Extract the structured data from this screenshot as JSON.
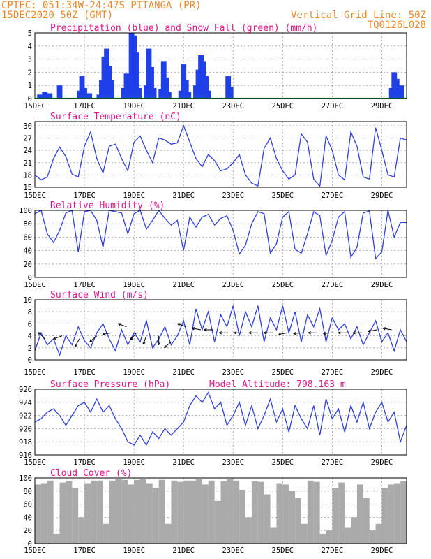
{
  "header": {
    "line1_left": "CPTEC:  051:34W-24:47S  PITANGA (PR)",
    "line2_left": "15DEC2020 50Z (GMT)",
    "line2_right": "Vertical Grid Line: 50Z",
    "line3_right": "TQ0126L028"
  },
  "colors": {
    "header": "#e8892b",
    "title": "#e0148c",
    "series": "#2d3fe0",
    "precip": "#1f3fe8",
    "snow": "#19a83a",
    "cloud": "#aaaaaa"
  },
  "x_ticks": [
    "15DEC",
    "17DEC",
    "19DEC",
    "21DEC",
    "23DEC",
    "25DEC",
    "27DEC",
    "29DEC"
  ],
  "x_tick_days": [
    0,
    2,
    4,
    6,
    8,
    10,
    12,
    14
  ],
  "x_range_days": [
    0,
    15
  ],
  "chart_data": [
    {
      "type": "bar",
      "title": "Precipitation (blue) and Snow Fall (green) (mm/h)",
      "ylim": [
        0,
        5
      ],
      "yticks": [
        0,
        1,
        2,
        3,
        4,
        5
      ],
      "series": [
        {
          "name": "Precipitation",
          "points": [
            [
              0.2,
              0.3
            ],
            [
              0.4,
              0.5
            ],
            [
              0.6,
              0.4
            ],
            [
              1.0,
              1.0
            ],
            [
              1.8,
              0.6
            ],
            [
              1.9,
              1.7
            ],
            [
              2.0,
              0.8
            ],
            [
              2.2,
              0.4
            ],
            [
              2.6,
              0.3
            ],
            [
              2.7,
              1.4
            ],
            [
              2.8,
              3.2
            ],
            [
              2.9,
              3.8
            ],
            [
              3.0,
              2.5
            ],
            [
              3.1,
              1.4
            ],
            [
              3.6,
              0.8
            ],
            [
              3.7,
              1.9
            ],
            [
              3.8,
              0.6
            ],
            [
              3.9,
              5.0
            ],
            [
              4.0,
              4.8
            ],
            [
              4.1,
              3.5
            ],
            [
              4.2,
              0.8
            ],
            [
              4.5,
              1.0
            ],
            [
              4.6,
              3.8
            ],
            [
              4.7,
              2.4
            ],
            [
              4.8,
              0.8
            ],
            [
              5.1,
              0.7
            ],
            [
              5.2,
              2.8
            ],
            [
              5.3,
              1.6
            ],
            [
              5.4,
              0.5
            ],
            [
              5.9,
              0.6
            ],
            [
              6.0,
              2.6
            ],
            [
              6.1,
              1.4
            ],
            [
              6.2,
              0.5
            ],
            [
              6.5,
              1.0
            ],
            [
              6.6,
              2.2
            ],
            [
              6.7,
              3.3
            ],
            [
              6.8,
              2.8
            ],
            [
              6.9,
              1.7
            ],
            [
              7.0,
              0.6
            ],
            [
              7.8,
              1.7
            ],
            [
              7.9,
              0.9
            ],
            [
              14.4,
              0.8
            ],
            [
              14.5,
              2.0
            ],
            [
              14.6,
              1.5
            ],
            [
              14.7,
              0.6
            ],
            [
              14.8,
              1.0
            ]
          ]
        },
        {
          "name": "Snow Fall",
          "points": []
        }
      ]
    },
    {
      "type": "line",
      "title": "Surface Temperature (nC)",
      "ylim": [
        15,
        31
      ],
      "yticks": [
        15,
        18,
        21,
        24,
        27,
        30
      ],
      "x": [
        0,
        0.25,
        0.5,
        0.75,
        1,
        1.25,
        1.5,
        1.75,
        2,
        2.25,
        2.5,
        2.75,
        3,
        3.25,
        3.5,
        3.75,
        4,
        4.25,
        4.5,
        4.75,
        5,
        5.25,
        5.5,
        5.75,
        6,
        6.25,
        6.5,
        6.75,
        7,
        7.25,
        7.5,
        7.75,
        8,
        8.25,
        8.5,
        8.75,
        9,
        9.25,
        9.5,
        9.75,
        10,
        10.25,
        10.5,
        10.75,
        11,
        11.25,
        11.5,
        11.75,
        12,
        12.25,
        12.5,
        12.75,
        13,
        13.25,
        13.5,
        13.75,
        14,
        14.25,
        14.5,
        14.75,
        15
      ],
      "y": [
        18,
        16.8,
        17.5,
        22,
        24.8,
        22.5,
        18.2,
        17.5,
        25,
        28.5,
        22,
        18.5,
        25,
        25.5,
        22,
        19,
        26,
        27.5,
        24,
        21,
        27,
        26.5,
        25.5,
        25.8,
        30,
        26,
        22,
        20,
        23,
        21.5,
        19,
        19.5,
        21,
        23,
        18,
        16,
        15.3,
        24.5,
        27,
        22,
        19,
        17,
        18,
        28,
        26,
        17,
        15.2,
        27.5,
        24,
        18,
        16.8,
        28.5,
        25,
        17.5,
        17,
        29.5,
        24,
        18,
        17.5,
        27,
        26.5
      ]
    },
    {
      "type": "line",
      "title": "Relative Humidity (%)",
      "ylim": [
        0,
        100
      ],
      "yticks": [
        0,
        20,
        40,
        60,
        80,
        100
      ],
      "x": [
        0,
        0.25,
        0.5,
        0.75,
        1,
        1.25,
        1.5,
        1.75,
        2,
        2.25,
        2.5,
        2.75,
        3,
        3.25,
        3.5,
        3.75,
        4,
        4.25,
        4.5,
        4.75,
        5,
        5.25,
        5.5,
        5.75,
        6,
        6.25,
        6.5,
        6.75,
        7,
        7.25,
        7.5,
        7.75,
        8,
        8.25,
        8.5,
        8.75,
        9,
        9.25,
        9.5,
        9.75,
        10,
        10.25,
        10.5,
        10.75,
        11,
        11.25,
        11.5,
        11.75,
        12,
        12.25,
        12.5,
        12.75,
        13,
        13.25,
        13.5,
        13.75,
        14,
        14.25,
        14.5,
        14.75,
        15
      ],
      "y": [
        95,
        100,
        65,
        52,
        70,
        96,
        100,
        38,
        98,
        100,
        85,
        45,
        100,
        98,
        96,
        65,
        95,
        100,
        72,
        85,
        100,
        88,
        78,
        85,
        40,
        90,
        75,
        90,
        94,
        78,
        88,
        92,
        70,
        35,
        48,
        80,
        98,
        95,
        36,
        50,
        90,
        98,
        42,
        36,
        65,
        98,
        92,
        33,
        55,
        90,
        98,
        30,
        45,
        96,
        99,
        28,
        38,
        100,
        60,
        82,
        82
      ]
    },
    {
      "type": "line",
      "title": "Surface Wind (m/s)",
      "ylim": [
        0,
        10
      ],
      "yticks": [
        0,
        2,
        4,
        6,
        8,
        10
      ],
      "x": [
        0,
        0.25,
        0.5,
        0.75,
        1,
        1.25,
        1.5,
        1.75,
        2,
        2.25,
        2.5,
        2.75,
        3,
        3.25,
        3.5,
        3.75,
        4,
        4.25,
        4.5,
        4.75,
        5,
        5.25,
        5.5,
        5.75,
        6,
        6.25,
        6.5,
        6.75,
        7,
        7.25,
        7.5,
        7.75,
        8,
        8.25,
        8.5,
        8.75,
        9,
        9.25,
        9.5,
        9.75,
        10,
        10.25,
        10.5,
        10.75,
        11,
        11.25,
        11.5,
        11.75,
        12,
        12.25,
        12.5,
        12.75,
        13,
        13.25,
        13.5,
        13.75,
        14,
        14.25,
        14.5,
        14.75,
        15
      ],
      "y": [
        1.5,
        4.5,
        2.5,
        3.5,
        0.8,
        4,
        2.5,
        5.5,
        3.2,
        2,
        4.5,
        6,
        3.5,
        1.5,
        5,
        2.5,
        4.5,
        3,
        6.5,
        2,
        3.5,
        5.5,
        2.5,
        4,
        6.5,
        2.5,
        8.5,
        5,
        8,
        3,
        7.5,
        5.5,
        9,
        4,
        8,
        5.5,
        9,
        3,
        7,
        5,
        9,
        4.5,
        8,
        3,
        7.5,
        5.5,
        8.5,
        3,
        7,
        5,
        6,
        3.5,
        5.5,
        2.5,
        4.5,
        6.5,
        3,
        4.5,
        1.5,
        5,
        3
      ],
      "arrows_days": [
        0.4,
        1.1,
        1.8,
        2.5,
        3.1,
        3.7,
        4.1,
        4.5,
        5.0,
        5.5,
        6.1,
        6.7,
        7.2,
        7.8,
        8.4,
        9.0,
        9.6,
        10.2,
        10.8,
        11.4,
        12.0,
        12.6,
        13.2,
        13.8,
        14.4
      ],
      "arrow_level": [
        3.5,
        4.0,
        3.5,
        4.0,
        4.5,
        5.5,
        4.5,
        4.0,
        4.0,
        3.0,
        5.5,
        5.0,
        5.0,
        4.5,
        4.5,
        4.5,
        4.5,
        4.5,
        4.5,
        4.5,
        4.5,
        4.5,
        4.5,
        5.0,
        5.0
      ],
      "arrow_dir_deg": [
        135,
        200,
        240,
        220,
        190,
        160,
        230,
        250,
        270,
        220,
        160,
        170,
        180,
        180,
        180,
        180,
        180,
        190,
        185,
        180,
        185,
        180,
        180,
        190,
        170
      ]
    },
    {
      "type": "line",
      "title": "Surface Pressure (hPa)",
      "annotation": "Model Altitude: 798.163 m",
      "ylim": [
        916,
        926
      ],
      "yticks": [
        916,
        918,
        920,
        922,
        924,
        926
      ],
      "x": [
        0,
        0.25,
        0.5,
        0.75,
        1,
        1.25,
        1.5,
        1.75,
        2,
        2.25,
        2.5,
        2.75,
        3,
        3.25,
        3.5,
        3.75,
        4,
        4.25,
        4.5,
        4.75,
        5,
        5.25,
        5.5,
        5.75,
        6,
        6.25,
        6.5,
        6.75,
        7,
        7.25,
        7.5,
        7.75,
        8,
        8.25,
        8.5,
        8.75,
        9,
        9.25,
        9.5,
        9.75,
        10,
        10.25,
        10.5,
        10.75,
        11,
        11.25,
        11.5,
        11.75,
        12,
        12.25,
        12.5,
        12.75,
        13,
        13.25,
        13.5,
        13.75,
        14,
        14.25,
        14.5,
        14.75,
        15
      ],
      "y": [
        921,
        921.5,
        922.5,
        923,
        922,
        920.5,
        922,
        923.5,
        924,
        922.5,
        924.5,
        922.5,
        923.5,
        921.5,
        920,
        918,
        917.5,
        919,
        917.5,
        919.5,
        918.5,
        920,
        919,
        920,
        921,
        923.5,
        925,
        924,
        925.5,
        923,
        924,
        920.5,
        922,
        924,
        920.5,
        923.5,
        920,
        922,
        924.5,
        921,
        923,
        919.5,
        923.5,
        921.5,
        920,
        923.5,
        919,
        924.5,
        921.5,
        923,
        919.5,
        923.5,
        921,
        924,
        920,
        922.5,
        924,
        921,
        922.5,
        918,
        920.5
      ]
    },
    {
      "type": "bar",
      "title": "Cloud Cover (%)",
      "ylim": [
        0,
        100
      ],
      "yticks": [
        0,
        20,
        40,
        60,
        80,
        100
      ],
      "x": [
        0,
        0.25,
        0.5,
        0.75,
        1,
        1.25,
        1.5,
        1.75,
        2,
        2.25,
        2.5,
        2.75,
        3,
        3.25,
        3.5,
        3.75,
        4,
        4.25,
        4.5,
        4.75,
        5,
        5.25,
        5.5,
        5.75,
        6,
        6.25,
        6.5,
        6.75,
        7,
        7.25,
        7.5,
        7.75,
        8,
        8.25,
        8.5,
        8.75,
        9,
        9.25,
        9.5,
        9.75,
        10,
        10.25,
        10.5,
        10.75,
        11,
        11.25,
        11.5,
        11.75,
        12,
        12.25,
        12.5,
        12.75,
        13,
        13.25,
        13.5,
        13.75,
        14,
        14.25,
        14.5,
        14.75
      ],
      "values": [
        90,
        92,
        96,
        15,
        93,
        95,
        85,
        40,
        92,
        96,
        96,
        30,
        96,
        98,
        97,
        90,
        97,
        98,
        92,
        85,
        97,
        30,
        96,
        94,
        96,
        96,
        98,
        90,
        96,
        65,
        95,
        98,
        96,
        82,
        40,
        95,
        94,
        75,
        25,
        92,
        90,
        80,
        70,
        30,
        96,
        94,
        15,
        20,
        85,
        93,
        25,
        40,
        90,
        70,
        20,
        30,
        85,
        90,
        92,
        95
      ]
    }
  ]
}
